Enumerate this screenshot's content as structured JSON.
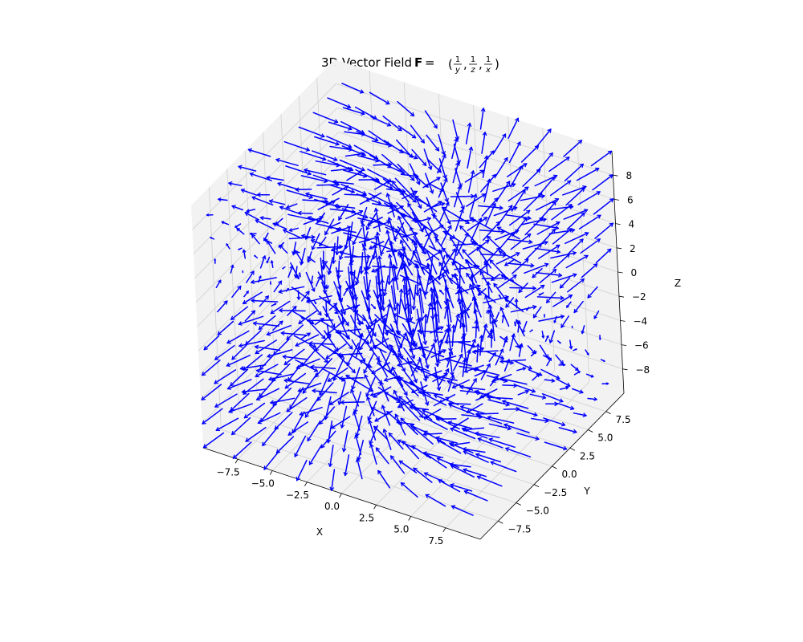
{
  "title": {
    "prefix": "3D Vector Field ",
    "symbol": "F",
    "equals": " = ",
    "components": [
      {
        "num": "1",
        "den": "y"
      },
      {
        "num": "1",
        "den": "z"
      },
      {
        "num": "1",
        "den": "x"
      }
    ]
  },
  "chart_data": {
    "type": "quiver3d",
    "field": {
      "u": "1/y",
      "v": "1/z",
      "w": "1/x"
    },
    "grid": {
      "x": [
        -9,
        -7,
        -5,
        -3,
        -1,
        1,
        3,
        5,
        7,
        9
      ],
      "y": [
        -9,
        -7,
        -5,
        -3,
        -1,
        1,
        3,
        5,
        7,
        9
      ],
      "z": [
        -9,
        -7,
        -5,
        -3,
        -1,
        1,
        3,
        5,
        7,
        9
      ]
    },
    "arrow_color": "#0000ff",
    "normalized": true,
    "xlabel": "X",
    "ylabel": "Y",
    "zlabel": "Z",
    "xlim": [
      -10,
      10
    ],
    "ylim": [
      -10,
      10
    ],
    "zlim": [
      -10,
      10
    ],
    "xticks": [
      {
        "value": -7.5,
        "label": "−7.5"
      },
      {
        "value": -5.0,
        "label": "−5.0"
      },
      {
        "value": -2.5,
        "label": "−2.5"
      },
      {
        "value": 0.0,
        "label": "0.0"
      },
      {
        "value": 2.5,
        "label": "2.5"
      },
      {
        "value": 5.0,
        "label": "5.0"
      },
      {
        "value": 7.5,
        "label": "7.5"
      }
    ],
    "yticks": [
      {
        "value": -7.5,
        "label": "−7.5"
      },
      {
        "value": -5.0,
        "label": "−5.0"
      },
      {
        "value": -2.5,
        "label": "−2.5"
      },
      {
        "value": 0.0,
        "label": "0.0"
      },
      {
        "value": 2.5,
        "label": "2.5"
      },
      {
        "value": 5.0,
        "label": "5.0"
      },
      {
        "value": 7.5,
        "label": "7.5"
      }
    ],
    "zticks": [
      {
        "value": -8,
        "label": "−8"
      },
      {
        "value": -6,
        "label": "−6"
      },
      {
        "value": -4,
        "label": "−4"
      },
      {
        "value": -2,
        "label": "−2"
      },
      {
        "value": 0,
        "label": "0"
      },
      {
        "value": 2,
        "label": "2"
      },
      {
        "value": 4,
        "label": "4"
      },
      {
        "value": 6,
        "label": "6"
      },
      {
        "value": 8,
        "label": "8"
      }
    ],
    "grid_visible": true,
    "pane_color": "#f2f2f2",
    "grid_color": "#d0d0d0"
  }
}
